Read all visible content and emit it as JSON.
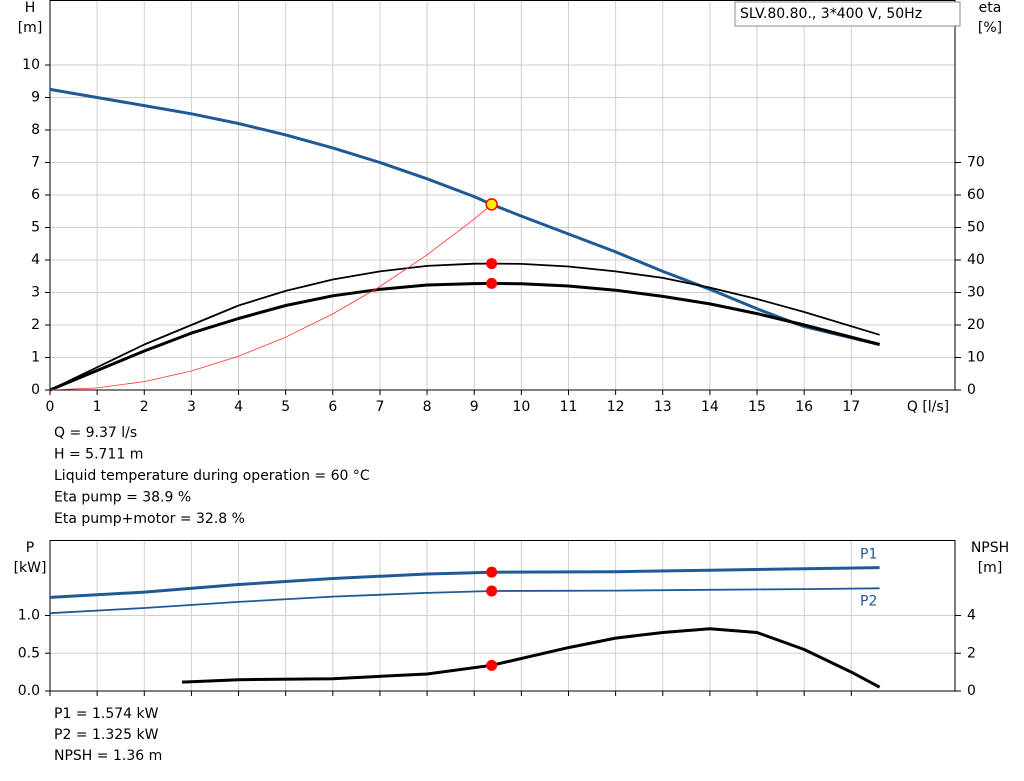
{
  "chart_data": [
    {
      "type": "line",
      "title": "SLV.80.80., 3*400 V, 50Hz",
      "y_label": [
        "H",
        "[m]"
      ],
      "y2_label": [
        "eta",
        "[%]"
      ],
      "x_label": "Q [l/s]",
      "xlim": [
        0,
        19.2
      ],
      "xticks": [
        0,
        1,
        2,
        3,
        4,
        5,
        6,
        7,
        8,
        9,
        10,
        11,
        12,
        13,
        14,
        15,
        16,
        17
      ],
      "ylim": [
        0,
        12
      ],
      "yticks": [
        0,
        1,
        2,
        3,
        4,
        5,
        6,
        7,
        8,
        9,
        10
      ],
      "y2lim": [
        0,
        120
      ],
      "y2ticks": [
        0,
        10,
        20,
        30,
        40,
        50,
        60,
        70
      ],
      "grid": true,
      "series": [
        {
          "color": "#1f5a96",
          "width": 3,
          "x": [
            0,
            1,
            2,
            3,
            4,
            5,
            6,
            7,
            8,
            9,
            9.37,
            10,
            11,
            12,
            13,
            14,
            15,
            16,
            17.6
          ],
          "values": [
            9.25,
            9.0,
            8.75,
            8.5,
            8.2,
            7.85,
            7.45,
            7.0,
            6.5,
            5.95,
            5.711,
            5.35,
            4.8,
            4.25,
            3.65,
            3.1,
            2.5,
            1.95,
            1.4
          ]
        },
        {
          "color": "#000000",
          "width": 1.8,
          "axis": "y2",
          "x": [
            0,
            1,
            2,
            3,
            4,
            5,
            6,
            7,
            8,
            9,
            9.37,
            10,
            11,
            12,
            13,
            14,
            15,
            16,
            17.6
          ],
          "values": [
            0,
            7,
            14,
            20,
            26,
            30.5,
            34,
            36.5,
            38.2,
            38.85,
            38.9,
            38.8,
            38,
            36.5,
            34.5,
            31.5,
            28,
            24,
            17
          ]
        },
        {
          "color": "#000000",
          "width": 3,
          "axis": "y2",
          "x": [
            0,
            1,
            2,
            3,
            4,
            5,
            6,
            7,
            8,
            9,
            9.37,
            10,
            11,
            12,
            13,
            14,
            15,
            16,
            17.6
          ],
          "values": [
            0,
            6,
            12,
            17.5,
            22,
            26,
            29,
            31,
            32.3,
            32.75,
            32.8,
            32.7,
            32,
            30.7,
            28.8,
            26.5,
            23.5,
            20,
            14
          ]
        },
        {
          "color": "#ff3030",
          "width": 0.8,
          "x": [
            0,
            1,
            2,
            3,
            4,
            5,
            6,
            7,
            8,
            9,
            9.37
          ],
          "values": [
            0,
            0.065,
            0.26,
            0.585,
            1.04,
            1.625,
            2.34,
            3.18,
            4.16,
            5.26,
            5.711
          ]
        }
      ],
      "points": [
        {
          "x": 9.37,
          "y": 5.711,
          "color": "#ffee00"
        },
        {
          "x": 9.37,
          "y": 38.9,
          "color": "#ff0000",
          "axis": "y2"
        },
        {
          "x": 9.37,
          "y": 32.8,
          "color": "#ff0000",
          "axis": "y2"
        }
      ],
      "annotations": [
        "Q = 9.37 l/s",
        "H = 5.711 m",
        "Liquid temperature during operation = 60 °C",
        "Eta pump = 38.9 %",
        "Eta pump+motor = 32.8 %"
      ]
    },
    {
      "type": "line",
      "y_label": [
        "P",
        "[kW]"
      ],
      "y2_label": [
        "NPSH",
        "[m]"
      ],
      "xlim": [
        0,
        19.2
      ],
      "xticks": [
        0,
        1,
        2,
        3,
        4,
        5,
        6,
        7,
        8,
        9,
        10,
        11,
        12,
        13,
        14,
        15,
        16,
        17
      ],
      "ylim": [
        0,
        2
      ],
      "yticks": [
        {
          "value": 0,
          "label": "0.0"
        },
        0.5,
        {
          "value": 1,
          "label": "1.0"
        }
      ],
      "y2lim": [
        0,
        8
      ],
      "y2ticks": [
        0,
        2,
        4
      ],
      "grid": true,
      "series": [
        {
          "name": "P1",
          "color": "#1f5a96",
          "width": 3,
          "x": [
            0,
            2,
            4,
            6,
            8,
            9.37,
            12,
            14,
            16,
            17.6
          ],
          "values": [
            1.24,
            1.31,
            1.41,
            1.49,
            1.55,
            1.574,
            1.58,
            1.6,
            1.62,
            1.635
          ]
        },
        {
          "name": "P2",
          "color": "#1f5a96",
          "width": 1.8,
          "x": [
            0,
            2,
            4,
            6,
            8,
            9.37,
            12,
            14,
            16,
            17.6
          ],
          "values": [
            1.03,
            1.1,
            1.18,
            1.25,
            1.3,
            1.325,
            1.33,
            1.34,
            1.35,
            1.36
          ]
        },
        {
          "color": "#000000",
          "width": 3,
          "axis": "y2",
          "x": [
            2.8,
            4,
            6,
            8,
            9.37,
            11,
            12,
            13,
            14,
            15,
            16,
            17,
            17.6
          ],
          "values": [
            0.47,
            0.6,
            0.65,
            0.9,
            1.36,
            2.3,
            2.8,
            3.1,
            3.3,
            3.1,
            2.2,
            1.0,
            0.2
          ]
        }
      ],
      "points": [
        {
          "x": 9.37,
          "y": 1.574,
          "color": "#ff0000"
        },
        {
          "x": 9.37,
          "y": 1.325,
          "color": "#ff0000"
        },
        {
          "x": 9.37,
          "y": 1.36,
          "color": "#ff0000",
          "axis": "y2"
        }
      ],
      "annotations": [
        "P1 = 1.574 kW",
        "P2 = 1.325 kW",
        "NPSH = 1.36 m"
      ]
    }
  ]
}
